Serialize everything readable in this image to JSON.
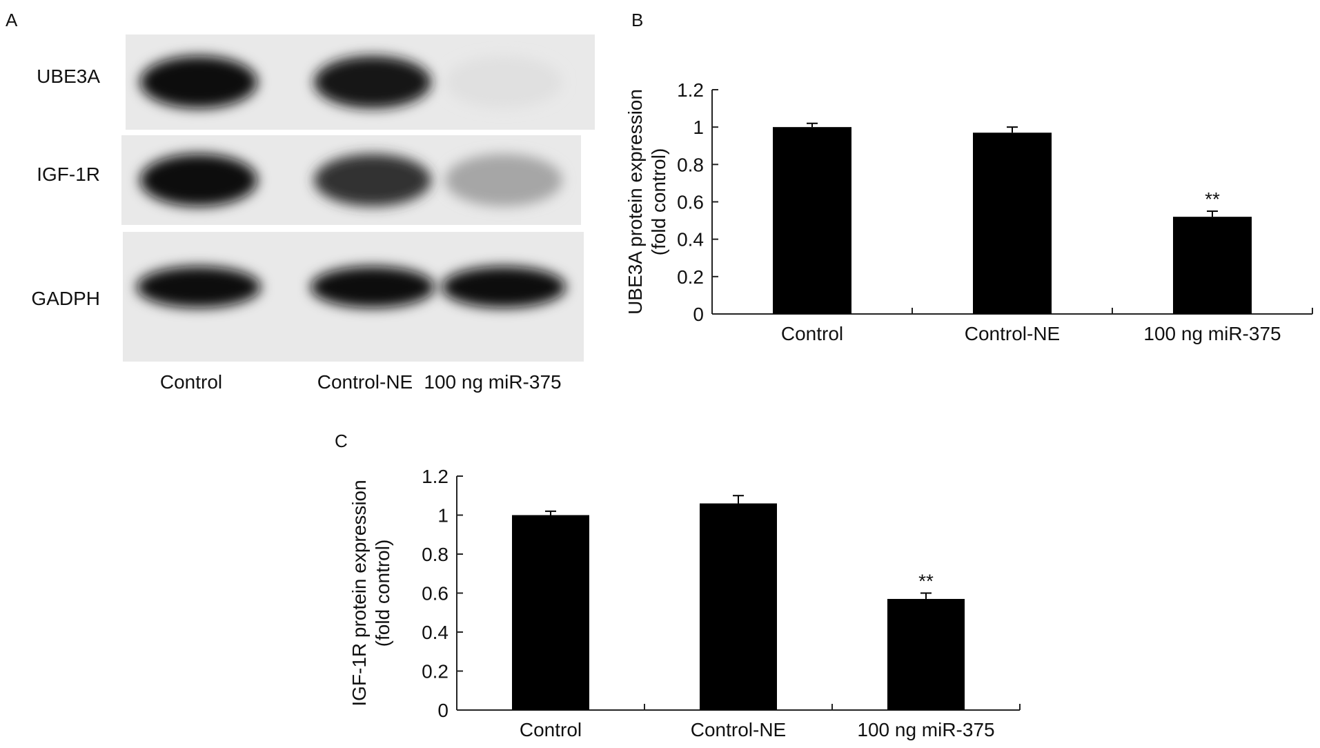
{
  "panels": {
    "a": {
      "letter": "A"
    },
    "b": {
      "letter": "B"
    },
    "c": {
      "letter": "C"
    }
  },
  "blot": {
    "rows": [
      {
        "label": "UBE3A",
        "band_intensity": [
          0.95,
          0.92,
          0.05
        ]
      },
      {
        "label": "IGF-1R",
        "band_intensity": [
          0.95,
          0.8,
          0.3
        ]
      },
      {
        "label": "GADPH",
        "band_intensity": [
          0.95,
          0.95,
          0.95
        ]
      }
    ],
    "lanes": [
      "Control",
      "Control-NE",
      "100 ng miR-375"
    ]
  },
  "chart_data": [
    {
      "panel": "B",
      "type": "bar",
      "categories": [
        "Control",
        "Control-NE",
        "100 ng miR-375"
      ],
      "values": [
        1.0,
        0.97,
        0.52
      ],
      "error": [
        0.02,
        0.03,
        0.03
      ],
      "annotations": [
        "",
        "",
        "**"
      ],
      "ylabel": "UBE3A protein expression\n(fold control)",
      "ylim": [
        0,
        1.2
      ],
      "yticks": [
        0,
        0.2,
        0.4,
        0.6,
        0.8,
        1,
        1.2
      ],
      "ytick_labels": [
        "0",
        "0.2",
        "0.4",
        "0.6",
        "0.8",
        "1",
        "1.2"
      ],
      "bar_color": "#000000",
      "grid": false
    },
    {
      "panel": "C",
      "type": "bar",
      "categories": [
        "Control",
        "Control-NE",
        "100 ng miR-375"
      ],
      "values": [
        1.0,
        1.06,
        0.57
      ],
      "error": [
        0.02,
        0.04,
        0.03
      ],
      "annotations": [
        "",
        "",
        "**"
      ],
      "ylabel": "IGF-1R protein expression\n(fold control)",
      "ylim": [
        0,
        1.2
      ],
      "yticks": [
        0,
        0.2,
        0.4,
        0.6,
        0.8,
        1,
        1.2
      ],
      "ytick_labels": [
        "0",
        "0.2",
        "0.4",
        "0.6",
        "0.8",
        "1",
        "1.2"
      ],
      "bar_color": "#000000",
      "grid": false
    }
  ]
}
